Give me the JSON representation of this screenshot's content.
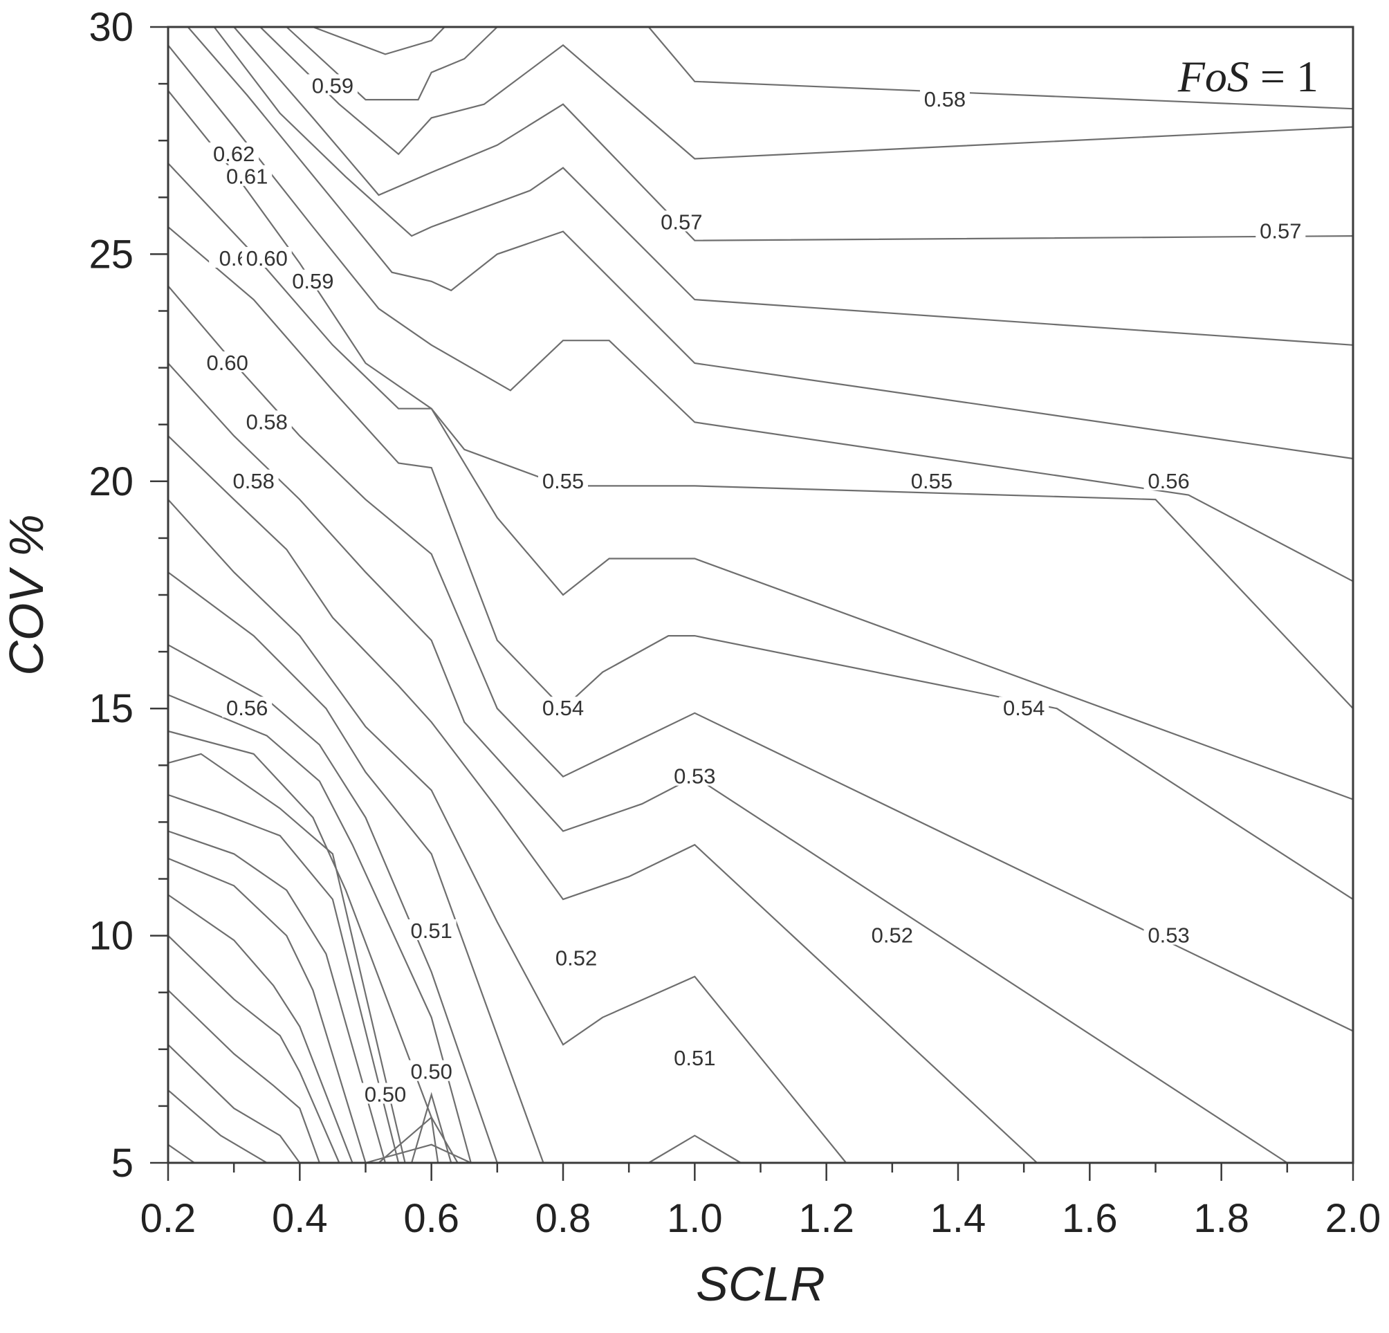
{
  "chart_data": {
    "type": "contour",
    "title": "",
    "annotation": {
      "variable": "FoS",
      "relation": " = 1"
    },
    "xlabel": "SCLR",
    "ylabel": "COV %",
    "xlim": [
      0.2,
      2.0
    ],
    "ylim": [
      5,
      30
    ],
    "x_ticks": [
      "0.2",
      "0.4",
      "0.6",
      "0.8",
      "1.0",
      "1.2",
      "1.4",
      "1.6",
      "1.8",
      "2.0"
    ],
    "y_ticks": [
      "5",
      "10",
      "15",
      "20",
      "25",
      "30"
    ],
    "grid": false,
    "contour_levels_labeled": [
      {
        "level": "0.62",
        "x": 0.3,
        "y": 27.2
      },
      {
        "level": "0.61",
        "x": 0.32,
        "y": 26.7
      },
      {
        "level": "0.59",
        "x": 0.45,
        "y": 28.7
      },
      {
        "level": "0.6",
        "x": 0.3,
        "y": 24.9
      },
      {
        "level": "0.60",
        "x": 0.35,
        "y": 24.9
      },
      {
        "level": "0.59",
        "x": 0.42,
        "y": 24.4
      },
      {
        "level": "0.60",
        "x": 0.29,
        "y": 22.6
      },
      {
        "level": "0.58",
        "x": 0.35,
        "y": 21.3
      },
      {
        "level": "0.58",
        "x": 0.33,
        "y": 20.0
      },
      {
        "level": "0.56",
        "x": 0.32,
        "y": 15.0
      },
      {
        "level": "0.51",
        "x": 0.6,
        "y": 10.1
      },
      {
        "level": "0.50",
        "x": 0.6,
        "y": 7.0
      },
      {
        "level": "0.50",
        "x": 0.53,
        "y": 6.5
      },
      {
        "level": "0.58",
        "x": 1.38,
        "y": 28.4
      },
      {
        "level": "0.57",
        "x": 0.98,
        "y": 25.7
      },
      {
        "level": "0.57",
        "x": 1.89,
        "y": 25.5
      },
      {
        "level": "0.55",
        "x": 0.8,
        "y": 20.0
      },
      {
        "level": "0.55",
        "x": 1.36,
        "y": 20.0
      },
      {
        "level": "0.56",
        "x": 1.72,
        "y": 20.0
      },
      {
        "level": "0.54",
        "x": 0.8,
        "y": 15.0
      },
      {
        "level": "0.54",
        "x": 1.5,
        "y": 15.0
      },
      {
        "level": "0.53",
        "x": 1.0,
        "y": 13.5
      },
      {
        "level": "0.52",
        "x": 0.82,
        "y": 9.5
      },
      {
        "level": "0.52",
        "x": 1.3,
        "y": 10.0
      },
      {
        "level": "0.53",
        "x": 1.72,
        "y": 10.0
      },
      {
        "level": "0.51",
        "x": 1.0,
        "y": 7.3
      }
    ],
    "contour_lines": [
      [
        [
          0.2,
          5.4
        ],
        [
          0.24,
          5.0
        ]
      ],
      [
        [
          0.2,
          6.6
        ],
        [
          0.28,
          5.6
        ],
        [
          0.35,
          5.0
        ]
      ],
      [
        [
          0.2,
          7.6
        ],
        [
          0.3,
          6.2
        ],
        [
          0.37,
          5.6
        ],
        [
          0.4,
          5.0
        ]
      ],
      [
        [
          0.2,
          8.8
        ],
        [
          0.3,
          7.4
        ],
        [
          0.36,
          6.7
        ],
        [
          0.4,
          6.2
        ],
        [
          0.43,
          5.0
        ]
      ],
      [
        [
          0.2,
          10.0
        ],
        [
          0.3,
          8.6
        ],
        [
          0.37,
          7.8
        ],
        [
          0.4,
          7.0
        ],
        [
          0.46,
          5.0
        ]
      ],
      [
        [
          0.2,
          10.9
        ],
        [
          0.3,
          9.9
        ],
        [
          0.36,
          8.9
        ],
        [
          0.4,
          8.0
        ],
        [
          0.48,
          5.0
        ]
      ],
      [
        [
          0.2,
          11.7
        ],
        [
          0.3,
          11.1
        ],
        [
          0.38,
          10.0
        ],
        [
          0.42,
          8.8
        ],
        [
          0.5,
          5.0
        ]
      ],
      [
        [
          0.2,
          12.3
        ],
        [
          0.3,
          11.8
        ],
        [
          0.38,
          11.0
        ],
        [
          0.44,
          9.6
        ],
        [
          0.53,
          5.0
        ]
      ],
      [
        [
          0.2,
          13.1
        ],
        [
          0.28,
          12.7
        ],
        [
          0.37,
          12.2
        ],
        [
          0.45,
          10.8
        ],
        [
          0.55,
          5.0
        ]
      ],
      [
        [
          0.2,
          13.8
        ],
        [
          0.25,
          14.0
        ],
        [
          0.37,
          12.8
        ],
        [
          0.45,
          11.8
        ],
        [
          0.56,
          5.0
        ]
      ],
      [
        [
          0.2,
          14.5
        ],
        [
          0.33,
          14.0
        ],
        [
          0.42,
          12.6
        ],
        [
          0.47,
          11.0
        ],
        [
          0.6,
          6.0
        ],
        [
          0.61,
          5.0
        ]
      ],
      [
        [
          0.2,
          15.3
        ],
        [
          0.35,
          14.4
        ],
        [
          0.43,
          13.4
        ],
        [
          0.48,
          12.0
        ],
        [
          0.6,
          8.2
        ],
        [
          0.66,
          5.0
        ]
      ],
      [
        [
          0.2,
          16.4
        ],
        [
          0.35,
          15.2
        ],
        [
          0.43,
          14.2
        ],
        [
          0.5,
          12.6
        ],
        [
          0.6,
          9.2
        ],
        [
          0.7,
          5.0
        ]
      ],
      [
        [
          0.2,
          18.0
        ],
        [
          0.33,
          16.6
        ],
        [
          0.44,
          15.0
        ],
        [
          0.5,
          13.6
        ],
        [
          0.6,
          11.8
        ],
        [
          0.72,
          7.0
        ],
        [
          0.77,
          5.0
        ]
      ],
      [
        [
          0.2,
          19.6
        ],
        [
          0.3,
          18.0
        ],
        [
          0.4,
          16.6
        ],
        [
          0.5,
          14.6
        ],
        [
          0.6,
          13.2
        ],
        [
          0.7,
          10.3
        ],
        [
          0.8,
          7.6
        ],
        [
          0.86,
          8.2
        ],
        [
          1.0,
          9.1
        ],
        [
          1.23,
          5.0
        ]
      ],
      [
        [
          0.2,
          21.0
        ],
        [
          0.3,
          19.6
        ],
        [
          0.38,
          18.5
        ],
        [
          0.45,
          17.0
        ],
        [
          0.55,
          15.5
        ],
        [
          0.6,
          14.7
        ],
        [
          0.7,
          12.8
        ],
        [
          0.8,
          10.8
        ],
        [
          0.9,
          11.3
        ],
        [
          1.0,
          12.0
        ],
        [
          1.52,
          5.0
        ]
      ],
      [
        [
          0.2,
          22.6
        ],
        [
          0.3,
          21.0
        ],
        [
          0.4,
          19.6
        ],
        [
          0.5,
          18.0
        ],
        [
          0.6,
          16.5
        ],
        [
          0.65,
          14.7
        ],
        [
          0.8,
          12.3
        ],
        [
          0.92,
          12.9
        ],
        [
          1.0,
          13.5
        ],
        [
          1.9,
          5.0
        ]
      ],
      [
        [
          0.2,
          24.3
        ],
        [
          0.3,
          22.6
        ],
        [
          0.4,
          21.0
        ],
        [
          0.5,
          19.6
        ],
        [
          0.6,
          18.4
        ],
        [
          0.7,
          15.0
        ],
        [
          0.8,
          13.5
        ],
        [
          1.0,
          14.9
        ],
        [
          2.0,
          7.9
        ]
      ],
      [
        [
          0.2,
          25.6
        ],
        [
          0.33,
          24.0
        ],
        [
          0.45,
          22.0
        ],
        [
          0.55,
          20.4
        ],
        [
          0.6,
          20.3
        ],
        [
          0.7,
          16.5
        ],
        [
          0.8,
          15.0
        ],
        [
          0.86,
          15.8
        ],
        [
          0.96,
          16.6
        ],
        [
          1.0,
          16.6
        ],
        [
          1.55,
          15.0
        ],
        [
          2.0,
          10.8
        ]
      ],
      [
        [
          0.2,
          27.0
        ],
        [
          0.33,
          25.0
        ],
        [
          0.45,
          23.0
        ],
        [
          0.55,
          21.6
        ],
        [
          0.6,
          21.6
        ],
        [
          0.7,
          19.2
        ],
        [
          0.8,
          17.5
        ],
        [
          0.87,
          18.3
        ],
        [
          1.0,
          18.3
        ],
        [
          2.0,
          13.0
        ]
      ],
      [
        [
          0.2,
          28.6
        ],
        [
          0.3,
          26.8
        ],
        [
          0.4,
          24.8
        ],
        [
          0.5,
          22.6
        ],
        [
          0.6,
          21.6
        ],
        [
          0.65,
          20.7
        ],
        [
          0.8,
          19.9
        ],
        [
          1.0,
          19.9
        ],
        [
          1.7,
          19.6
        ],
        [
          2.0,
          15.0
        ]
      ],
      [
        [
          0.2,
          29.6
        ],
        [
          0.3,
          27.8
        ],
        [
          0.42,
          25.6
        ],
        [
          0.52,
          23.8
        ],
        [
          0.6,
          23.0
        ],
        [
          0.72,
          22.0
        ],
        [
          0.8,
          23.1
        ],
        [
          0.87,
          23.1
        ],
        [
          1.0,
          21.3
        ],
        [
          1.75,
          19.7
        ],
        [
          2.0,
          17.8
        ]
      ],
      [
        [
          0.23,
          30.0
        ],
        [
          0.32,
          28.5
        ],
        [
          0.45,
          26.2
        ],
        [
          0.54,
          24.6
        ],
        [
          0.6,
          24.4
        ],
        [
          0.63,
          24.2
        ],
        [
          0.7,
          25.0
        ],
        [
          0.8,
          25.5
        ],
        [
          1.0,
          22.6
        ],
        [
          2.0,
          20.5
        ]
      ],
      [
        [
          0.27,
          30.0
        ],
        [
          0.37,
          28.1
        ],
        [
          0.47,
          26.7
        ],
        [
          0.57,
          25.4
        ],
        [
          0.6,
          25.6
        ],
        [
          0.75,
          26.4
        ],
        [
          0.8,
          26.9
        ],
        [
          1.0,
          24.0
        ],
        [
          2.0,
          23.0
        ]
      ],
      [
        [
          0.3,
          30.0
        ],
        [
          0.42,
          28.0
        ],
        [
          0.52,
          26.3
        ],
        [
          0.6,
          26.8
        ],
        [
          0.7,
          27.4
        ],
        [
          0.8,
          28.3
        ],
        [
          1.0,
          25.3
        ],
        [
          2.0,
          25.4
        ]
      ],
      [
        [
          0.34,
          30.0
        ],
        [
          0.46,
          28.3
        ],
        [
          0.55,
          27.2
        ],
        [
          0.6,
          28.0
        ],
        [
          0.68,
          28.3
        ],
        [
          0.8,
          29.6
        ],
        [
          1.0,
          27.1
        ],
        [
          2.0,
          27.8
        ]
      ],
      [
        [
          0.38,
          30.0
        ],
        [
          0.5,
          28.4
        ],
        [
          0.58,
          28.4
        ],
        [
          0.6,
          29.0
        ],
        [
          0.65,
          29.3
        ],
        [
          0.7,
          30.0
        ]
      ],
      [
        [
          0.42,
          30.0
        ],
        [
          0.53,
          29.4
        ],
        [
          0.6,
          29.7
        ],
        [
          0.62,
          30.0
        ]
      ],
      [
        [
          0.93,
          30.0
        ],
        [
          1.0,
          28.8
        ],
        [
          2.0,
          28.2
        ]
      ],
      [
        [
          0.5,
          5.0
        ],
        [
          0.6,
          5.4
        ],
        [
          0.66,
          5.0
        ]
      ],
      [
        [
          0.52,
          5.0
        ],
        [
          0.6,
          6.0
        ],
        [
          0.64,
          5.0
        ]
      ],
      [
        [
          0.57,
          5.0
        ],
        [
          0.6,
          6.5
        ],
        [
          0.63,
          5.0
        ]
      ],
      [
        [
          0.93,
          5.0
        ],
        [
          1.0,
          5.6
        ],
        [
          1.07,
          5.0
        ]
      ]
    ]
  }
}
